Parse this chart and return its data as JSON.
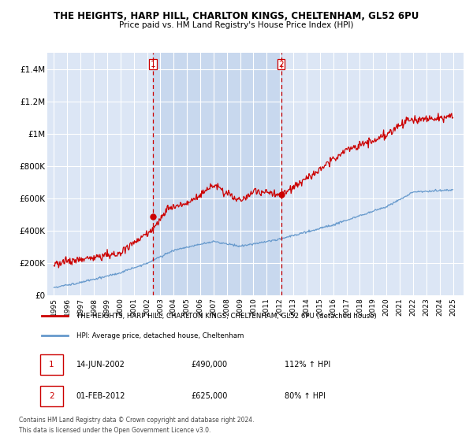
{
  "title1": "THE HEIGHTS, HARP HILL, CHARLTON KINGS, CHELTENHAM, GL52 6PU",
  "title2": "Price paid vs. HM Land Registry's House Price Index (HPI)",
  "bg_color": "#dce6f5",
  "shade_color": "#c8d8ee",
  "hpi_color": "#6699cc",
  "price_color": "#cc0000",
  "vline_color": "#cc0000",
  "ylim": [
    0,
    1500000
  ],
  "yticks": [
    0,
    200000,
    400000,
    600000,
    800000,
    1000000,
    1200000,
    1400000
  ],
  "ytick_labels": [
    "£0",
    "£200K",
    "£400K",
    "£600K",
    "£800K",
    "£1M",
    "£1.2M",
    "£1.4M"
  ],
  "sale1_price": 490000,
  "sale2_price": 625000,
  "sale1_date": "14-JUN-2002",
  "sale2_date": "01-FEB-2012",
  "sale1_label": "112% ↑ HPI",
  "sale2_label": "80% ↑ HPI",
  "legend_line1": "THE HEIGHTS, HARP HILL, CHARLTON KINGS, CHELTENHAM, GL52 6PU (detached house)",
  "legend_line2": "HPI: Average price, detached house, Cheltenham",
  "footnote1": "Contains HM Land Registry data © Crown copyright and database right 2024.",
  "footnote2": "This data is licensed under the Open Government Licence v3.0."
}
